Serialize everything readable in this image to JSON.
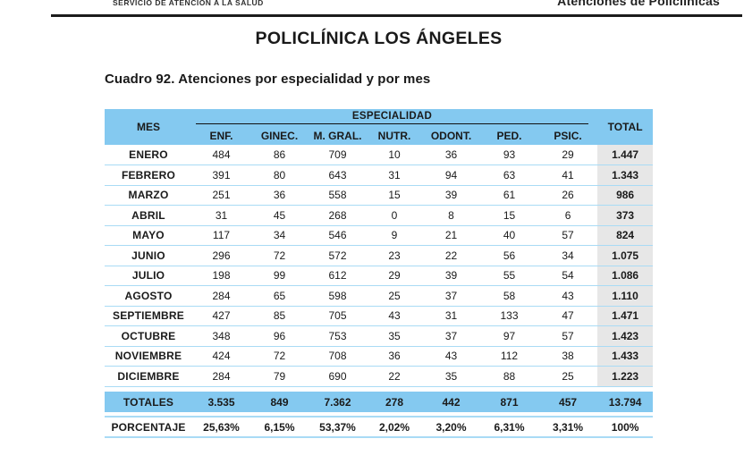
{
  "page": {
    "header_left_small": "SERVICIO DE ATENCIÓN A LA SALUD",
    "header_right": "Atenciones de Policlínicas",
    "title": "POLICLÍNICA LOS ÁNGELES",
    "subtitle": "Cuadro 92. Atenciones por especialidad y por mes"
  },
  "colors": {
    "header_blue": "#84C9F0",
    "separator_blue": "#A9DBF5",
    "total_column_gray": "#E7E7E7",
    "rule_black": "#1C1C1C",
    "text": "#1A1A1A"
  },
  "table": {
    "col_mes": "MES",
    "group_header": "ESPECIALIDAD",
    "col_total": "TOTAL",
    "sub_headers": [
      "ENF.",
      "GINEC.",
      "M. GRAL.",
      "NUTR.",
      "ODONT.",
      "PED.",
      "PSIC."
    ],
    "rows": [
      {
        "mes": "ENERO",
        "values": [
          "484",
          "86",
          "709",
          "10",
          "36",
          "93",
          "29"
        ],
        "total": "1.447"
      },
      {
        "mes": "FEBRERO",
        "values": [
          "391",
          "80",
          "643",
          "31",
          "94",
          "63",
          "41"
        ],
        "total": "1.343"
      },
      {
        "mes": "MARZO",
        "values": [
          "251",
          "36",
          "558",
          "15",
          "39",
          "61",
          "26"
        ],
        "total": "986"
      },
      {
        "mes": "ABRIL",
        "values": [
          "31",
          "45",
          "268",
          "0",
          "8",
          "15",
          "6"
        ],
        "total": "373"
      },
      {
        "mes": "MAYO",
        "values": [
          "117",
          "34",
          "546",
          "9",
          "21",
          "40",
          "57"
        ],
        "total": "824"
      },
      {
        "mes": "JUNIO",
        "values": [
          "296",
          "72",
          "572",
          "23",
          "22",
          "56",
          "34"
        ],
        "total": "1.075"
      },
      {
        "mes": "JULIO",
        "values": [
          "198",
          "99",
          "612",
          "29",
          "39",
          "55",
          "54"
        ],
        "total": "1.086"
      },
      {
        "mes": "AGOSTO",
        "values": [
          "284",
          "65",
          "598",
          "25",
          "37",
          "58",
          "43"
        ],
        "total": "1.110"
      },
      {
        "mes": "SEPTIEMBRE",
        "values": [
          "427",
          "85",
          "705",
          "43",
          "31",
          "133",
          "47"
        ],
        "total": "1.471"
      },
      {
        "mes": "OCTUBRE",
        "values": [
          "348",
          "96",
          "753",
          "35",
          "37",
          "97",
          "57"
        ],
        "total": "1.423"
      },
      {
        "mes": "NOVIEMBRE",
        "values": [
          "424",
          "72",
          "708",
          "36",
          "43",
          "112",
          "38"
        ],
        "total": "1.433"
      },
      {
        "mes": "DICIEMBRE",
        "values": [
          "284",
          "79",
          "690",
          "22",
          "35",
          "88",
          "25"
        ],
        "total": "1.223"
      }
    ],
    "totals_row": {
      "label": "TOTALES",
      "values": [
        "3.535",
        "849",
        "7.362",
        "278",
        "442",
        "871",
        "457"
      ],
      "total": "13.794"
    },
    "percent_row": {
      "label": "PORCENTAJE",
      "values": [
        "25,63%",
        "6,15%",
        "53,37%",
        "2,02%",
        "3,20%",
        "6,31%",
        "3,31%"
      ],
      "total": "100%"
    }
  }
}
